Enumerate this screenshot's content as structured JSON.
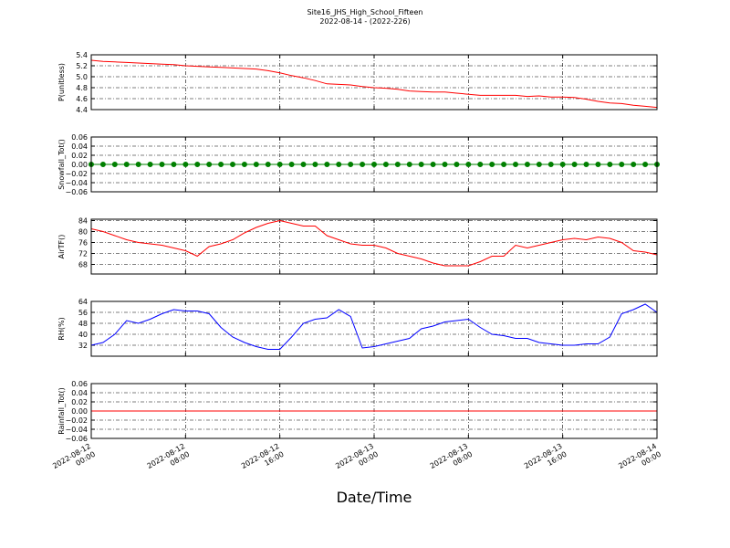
{
  "title": "Site16_JHS_High_School_Fifteen",
  "subtitle": "2022-08-14 - (2022-226)",
  "x_label": "Date/Time",
  "xlim": [
    "2022-08-12 00:00",
    "2022-08-14 00:00"
  ],
  "xticks": [
    "2022-08-12 00:00",
    "2022-08-12 08:00",
    "2022-08-12 16:00",
    "2022-08-13 00:00",
    "2022-08-13 08:00",
    "2022-08-13 16:00",
    "2022-08-14 00:00"
  ],
  "x": [
    "2022-08-12 00:00",
    "2022-08-12 01:00",
    "2022-08-12 02:00",
    "2022-08-12 03:00",
    "2022-08-12 04:00",
    "2022-08-12 05:00",
    "2022-08-12 06:00",
    "2022-08-12 07:00",
    "2022-08-12 08:00",
    "2022-08-12 09:00",
    "2022-08-12 10:00",
    "2022-08-12 11:00",
    "2022-08-12 12:00",
    "2022-08-12 13:00",
    "2022-08-12 14:00",
    "2022-08-12 15:00",
    "2022-08-12 16:00",
    "2022-08-12 17:00",
    "2022-08-12 18:00",
    "2022-08-12 19:00",
    "2022-08-12 20:00",
    "2022-08-12 21:00",
    "2022-08-12 22:00",
    "2022-08-12 23:00",
    "2022-08-13 00:00",
    "2022-08-13 01:00",
    "2022-08-13 02:00",
    "2022-08-13 03:00",
    "2022-08-13 04:00",
    "2022-08-13 05:00",
    "2022-08-13 06:00",
    "2022-08-13 07:00",
    "2022-08-13 08:00",
    "2022-08-13 09:00",
    "2022-08-13 10:00",
    "2022-08-13 11:00",
    "2022-08-13 12:00",
    "2022-08-13 13:00",
    "2022-08-13 14:00",
    "2022-08-13 15:00",
    "2022-08-13 16:00",
    "2022-08-13 17:00",
    "2022-08-13 18:00",
    "2022-08-13 19:00",
    "2022-08-13 20:00",
    "2022-08-13 21:00",
    "2022-08-13 22:00",
    "2022-08-13 23:00",
    "2022-08-14 00:00"
  ],
  "chart_data": [
    {
      "type": "line",
      "ylabel": "P(unitless)",
      "color": "#ff0000",
      "grid": true,
      "ylim": [
        4.4,
        5.4
      ],
      "yticks": [
        4.4,
        4.6,
        4.8,
        {
          "value": 5,
          "label": "5.0"
        },
        5.2,
        5.4
      ],
      "values": [
        5.3,
        5.28,
        5.27,
        5.26,
        5.25,
        5.24,
        5.23,
        5.22,
        5.2,
        5.19,
        5.18,
        5.17,
        5.16,
        5.15,
        5.14,
        5.11,
        5.07,
        5.02,
        4.98,
        4.93,
        4.87,
        4.86,
        4.85,
        4.82,
        4.8,
        4.79,
        4.77,
        4.74,
        4.73,
        4.72,
        4.72,
        4.7,
        4.68,
        4.66,
        4.66,
        4.66,
        4.66,
        4.64,
        4.65,
        4.63,
        4.63,
        4.62,
        4.59,
        4.55,
        4.52,
        4.51,
        4.48,
        4.46,
        4.44
      ]
    },
    {
      "type": "line",
      "ylabel": "Snowfall_Tot()",
      "color": "#008000",
      "markers": true,
      "grid": true,
      "ylim": [
        -0.06,
        0.06
      ],
      "yticks": [
        {
          "value": -0.06,
          "label": "−0.06"
        },
        {
          "value": -0.04,
          "label": "−0.04"
        },
        {
          "value": -0.02,
          "label": "−0.02"
        },
        {
          "value": 0,
          "label": "0.00"
        },
        0.02,
        0.04,
        0.06
      ],
      "values": [
        0,
        0,
        0,
        0,
        0,
        0,
        0,
        0,
        0,
        0,
        0,
        0,
        0,
        0,
        0,
        0,
        0,
        0,
        0,
        0,
        0,
        0,
        0,
        0,
        0,
        0,
        0,
        0,
        0,
        0,
        0,
        0,
        0,
        0,
        0,
        0,
        0,
        0,
        0,
        0,
        0,
        0,
        0,
        0,
        0,
        0,
        0,
        0,
        0
      ]
    },
    {
      "type": "line",
      "ylabel": "AirTF()",
      "color": "#ff0000",
      "grid": true,
      "ylim": [
        64.5,
        84.5
      ],
      "yticks": [
        68,
        72,
        76,
        80,
        84
      ],
      "values": [
        81,
        80,
        78.5,
        77,
        76,
        75.5,
        75,
        74,
        73,
        71,
        74.5,
        75.5,
        77,
        79.5,
        81.5,
        83,
        84,
        83,
        82,
        82,
        78.5,
        77,
        75.5,
        75,
        75,
        74,
        72,
        71,
        70,
        68.5,
        67.5,
        67.5,
        67.5,
        69,
        71,
        71,
        75,
        74,
        75,
        76,
        77,
        77.5,
        77,
        78,
        77.5,
        76,
        73,
        72.5,
        71.5
      ]
    },
    {
      "type": "line",
      "ylabel": "RH(%)",
      "color": "#0000ff",
      "grid": true,
      "ylim": [
        24,
        64
      ],
      "yticks": [
        32,
        40,
        48,
        56,
        64
      ],
      "values": [
        32,
        34,
        40,
        50,
        48,
        51,
        55,
        58,
        57,
        57,
        55,
        45,
        38,
        34,
        31,
        29,
        29,
        38,
        48,
        51,
        52,
        58,
        53,
        30,
        31,
        33,
        35,
        37,
        44,
        46,
        49,
        50,
        51,
        45,
        40,
        39,
        37,
        37,
        34,
        33,
        32,
        32,
        33,
        33,
        38,
        55,
        58,
        62,
        56
      ]
    },
    {
      "type": "line",
      "ylabel": "Rainfall_Tot()",
      "color": "#ff0000",
      "grid": true,
      "ylim": [
        -0.06,
        0.06
      ],
      "yticks": [
        {
          "value": -0.06,
          "label": "−0.06"
        },
        {
          "value": -0.04,
          "label": "−0.04"
        },
        {
          "value": -0.02,
          "label": "−0.02"
        },
        {
          "value": 0,
          "label": "0.00"
        },
        0.02,
        0.04,
        0.06
      ],
      "values": [
        0,
        0,
        0,
        0,
        0,
        0,
        0,
        0,
        0,
        0,
        0,
        0,
        0,
        0,
        0,
        0,
        0,
        0,
        0,
        0,
        0,
        0,
        0,
        0,
        0,
        0,
        0,
        0,
        0,
        0,
        0,
        0,
        0,
        0,
        0,
        0,
        0,
        0,
        0,
        0,
        0,
        0,
        0,
        0,
        0,
        0,
        0,
        0,
        0
      ]
    }
  ]
}
